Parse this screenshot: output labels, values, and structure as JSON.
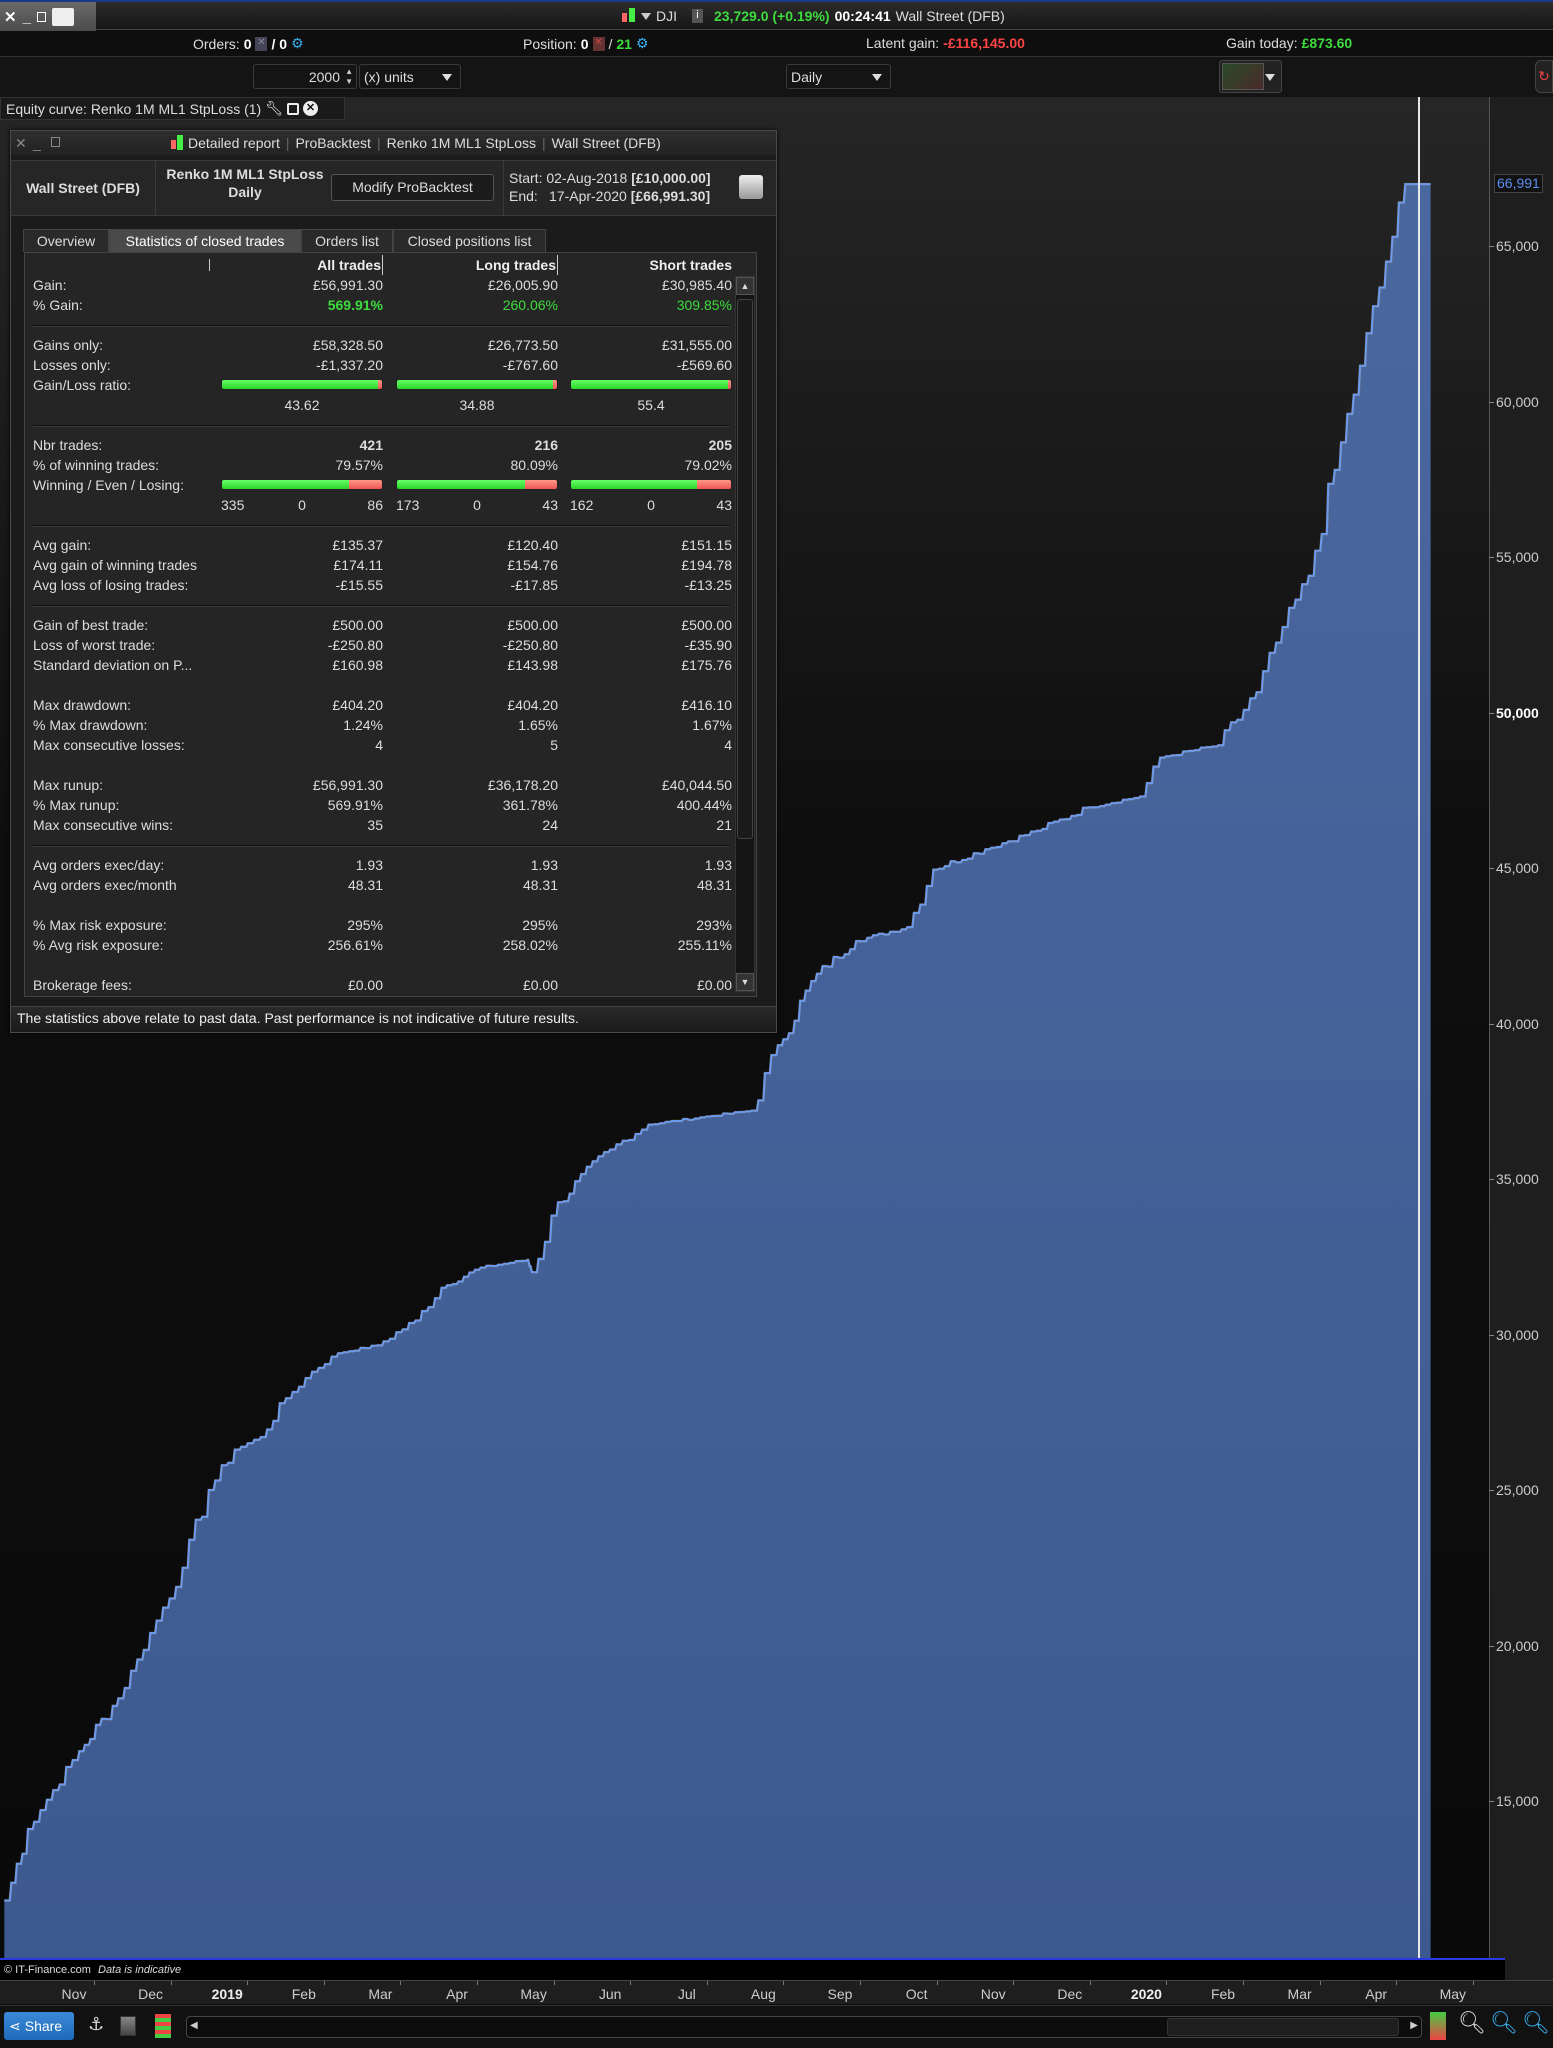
{
  "topbar": {
    "symbol": "DJI",
    "price_change": "23,729.0 (+0.19%)",
    "time": "00:24:41",
    "instrument": "Wall Street (DFB)"
  },
  "status": {
    "orders_label": "Orders:",
    "orders_value": "0",
    "orders_sep": "/ 0",
    "position_label": "Position:",
    "position_value": "0",
    "position_sep": "/",
    "position_count": "21",
    "latent_label": "Latent gain:",
    "latent_value": "-£116,145.00",
    "gain_today_label": "Gain today:",
    "gain_today_value": "£873.60"
  },
  "toolbar": {
    "quantity": "2000",
    "units": "(x) units",
    "timeframe": "Daily"
  },
  "equity_label": "Equity curve: Renko 1M ML1 StpLoss (1)",
  "report": {
    "title_parts": [
      "Detailed report",
      "ProBacktest",
      "Renko 1M ML1 StpLoss",
      "Wall Street (DFB)"
    ],
    "instrument": "Wall Street (DFB)",
    "system_name": "Renko 1M ML1 StpLoss",
    "system_tf": "Daily",
    "modify_button": "Modify ProBacktest",
    "start_label": "Start:",
    "start_date": "02-Aug-2018",
    "start_capital": "[£10,000.00]",
    "end_label": "End:",
    "end_date": "17-Apr-2020",
    "end_capital": "[£66,991.30]",
    "tabs": [
      "Overview",
      "Statistics of closed trades",
      "Orders list",
      "Closed positions list"
    ],
    "active_tab": 1,
    "columns": [
      "All trades",
      "Long trades",
      "Short trades"
    ],
    "sections": [
      {
        "rows": [
          {
            "label": "Gain:",
            "values": [
              "£56,991.30",
              "£26,005.90",
              "£30,985.40"
            ]
          },
          {
            "label": "% Gain:",
            "values": [
              "569.91%",
              "260.06%",
              "309.85%"
            ],
            "color": "#3ddc3d",
            "bold_first": true
          }
        ]
      },
      {
        "rows": [
          {
            "label": "Gains only:",
            "values": [
              "£58,328.50",
              "£26,773.50",
              "£31,555.00"
            ]
          },
          {
            "label": "Losses only:",
            "values": [
              "-£1,337.20",
              "-£767.60",
              "-£569.60"
            ]
          },
          {
            "label": "Gain/Loss ratio:",
            "bar": [
              0.978,
              0.972,
              0.982
            ],
            "ratio_values": [
              "43.62",
              "34.88",
              "55.4"
            ]
          }
        ]
      },
      {
        "rows": [
          {
            "label": "Nbr trades:",
            "values": [
              "421",
              "216",
              "205"
            ],
            "bold": true
          },
          {
            "label": "% of winning trades:",
            "values": [
              "79.57%",
              "80.09%",
              "79.02%"
            ]
          },
          {
            "label": "Winning / Even / Losing:",
            "wel": [
              [
                "335",
                "0",
                "86"
              ],
              [
                "173",
                "0",
                "43"
              ],
              [
                "162",
                "0",
                "43"
              ]
            ]
          }
        ]
      },
      {
        "rows": [
          {
            "label": "Avg gain:",
            "values": [
              "£135.37",
              "£120.40",
              "£151.15"
            ]
          },
          {
            "label": "Avg gain of winning trades",
            "values": [
              "£174.11",
              "£154.76",
              "£194.78"
            ]
          },
          {
            "label": "Avg loss of losing trades:",
            "values": [
              "-£15.55",
              "-£17.85",
              "-£13.25"
            ]
          }
        ]
      },
      {
        "rows": [
          {
            "label": "Gain of best trade:",
            "values": [
              "£500.00",
              "£500.00",
              "£500.00"
            ]
          },
          {
            "label": "Loss of worst trade:",
            "values": [
              "-£250.80",
              "-£250.80",
              "-£35.90"
            ]
          },
          {
            "label": "Standard deviation on P...",
            "values": [
              "£160.98",
              "£143.98",
              "£175.76"
            ]
          }
        ]
      },
      {
        "rows": [
          {
            "label": "Max drawdown:",
            "values": [
              "£404.20",
              "£404.20",
              "£416.10"
            ]
          },
          {
            "label": "% Max drawdown:",
            "values": [
              "1.24%",
              "1.65%",
              "1.67%"
            ]
          },
          {
            "label": "Max consecutive losses:",
            "values": [
              "4",
              "5",
              "4"
            ]
          }
        ]
      },
      {
        "rows": [
          {
            "label": "Max runup:",
            "values": [
              "£56,991.30",
              "£36,178.20",
              "£40,044.50"
            ]
          },
          {
            "label": "% Max runup:",
            "values": [
              "569.91%",
              "361.78%",
              "400.44%"
            ]
          },
          {
            "label": "Max consecutive wins:",
            "values": [
              "35",
              "24",
              "21"
            ]
          }
        ]
      },
      {
        "rows": [
          {
            "label": "Avg orders exec/day:",
            "values": [
              "1.93",
              "1.93",
              "1.93"
            ]
          },
          {
            "label": "Avg orders exec/month",
            "values": [
              "48.31",
              "48.31",
              "48.31"
            ]
          }
        ]
      },
      {
        "rows": [
          {
            "label": "% Max risk exposure:",
            "values": [
              "295%",
              "295%",
              "293%"
            ]
          },
          {
            "label": "% Avg risk exposure:",
            "values": [
              "256.61%",
              "258.02%",
              "255.11%"
            ]
          }
        ]
      },
      {
        "rows": [
          {
            "label": "Brokerage fees:",
            "values": [
              "£0.00",
              "£0.00",
              "£0.00"
            ]
          }
        ]
      }
    ],
    "disclaimer": "The statistics above relate to past data. Past performance is not indicative of future results."
  },
  "chart_data": {
    "type": "area",
    "title": "Equity curve: Renko 1M ML1 StpLoss (1)",
    "x_unit": "months since 1-Oct-2018",
    "x_tick_labels": [
      "Nov",
      "Dec",
      "2019",
      "Feb",
      "Mar",
      "Apr",
      "May",
      "Jun",
      "Jul",
      "Aug",
      "Sep",
      "Oct",
      "Nov",
      "Dec",
      "2020",
      "Feb",
      "Mar",
      "Apr",
      "May"
    ],
    "y_ticks": [
      15000,
      20000,
      25000,
      30000,
      35000,
      40000,
      45000,
      50000,
      55000,
      60000,
      65000
    ],
    "y_tick_labels": [
      "15,000",
      "20,000",
      "25,000",
      "30,000",
      "35,000",
      "40,000",
      "45,000",
      "50,000",
      "55,000",
      "60,000",
      "65,000"
    ],
    "ylim": [
      10000,
      69000
    ],
    "last_value_label": "66,991",
    "series": [
      {
        "name": "Equity",
        "points": [
          [
            0.09,
            11800
          ],
          [
            0.38,
            14100
          ],
          [
            0.71,
            15350
          ],
          [
            1.05,
            16600
          ],
          [
            1.56,
            18300
          ],
          [
            1.81,
            19550
          ],
          [
            2.06,
            20800
          ],
          [
            2.4,
            22500
          ],
          [
            2.74,
            25000
          ],
          [
            3.08,
            26300
          ],
          [
            3.42,
            26700
          ],
          [
            3.75,
            27950
          ],
          [
            4.09,
            28800
          ],
          [
            4.43,
            29400
          ],
          [
            4.94,
            29650
          ],
          [
            5.44,
            30450
          ],
          [
            5.78,
            31500
          ],
          [
            6.29,
            32150
          ],
          [
            6.9,
            32400
          ],
          [
            6.96,
            32000
          ],
          [
            7.3,
            34250
          ],
          [
            7.98,
            35950
          ],
          [
            8.48,
            36750
          ],
          [
            9.16,
            36980
          ],
          [
            9.83,
            37200
          ],
          [
            10.17,
            39300
          ],
          [
            10.68,
            41600
          ],
          [
            11.19,
            42650
          ],
          [
            11.86,
            43100
          ],
          [
            12.2,
            44950
          ],
          [
            12.88,
            45600
          ],
          [
            13.55,
            46200
          ],
          [
            14.23,
            46950
          ],
          [
            14.9,
            47300
          ],
          [
            15.16,
            48550
          ],
          [
            15.92,
            48950
          ],
          [
            16.42,
            50650
          ],
          [
            16.76,
            52750
          ],
          [
            17.1,
            54400
          ],
          [
            17.44,
            57800
          ],
          [
            17.77,
            61150
          ],
          [
            18.11,
            64500
          ],
          [
            18.36,
            66991
          ],
          [
            18.69,
            66991
          ]
        ]
      }
    ],
    "colors": {
      "fill": "#3d5a90",
      "line": "#6a9af0",
      "cursor": "#ffffff",
      "last_value": "#5b8ef0"
    }
  },
  "footer": {
    "copyright": "© IT-Finance.com",
    "note": "Data is indicative",
    "share": "Share"
  }
}
